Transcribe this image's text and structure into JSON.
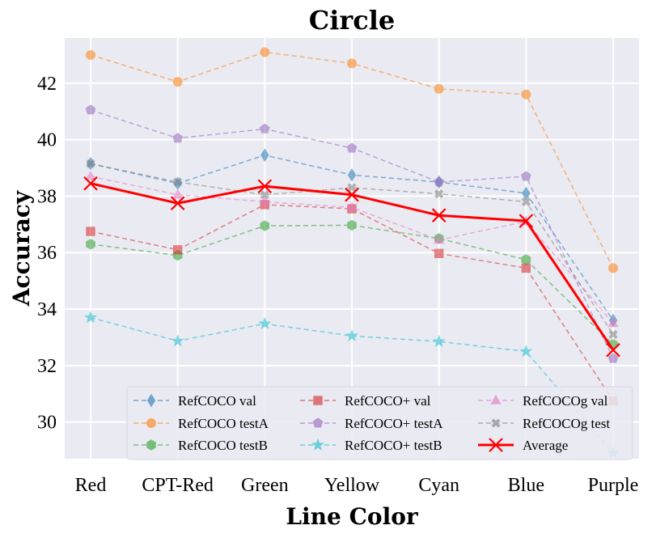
{
  "chart_data": {
    "type": "line",
    "title": "Circle",
    "xlabel": "Line Color",
    "ylabel": "Accuracy",
    "categories": [
      "Red",
      "CPT-Red",
      "Green",
      "Yellow",
      "Cyan",
      "Blue",
      "Purple"
    ],
    "ylim": [
      28.7,
      43.6
    ],
    "yticks": [
      30,
      32,
      34,
      36,
      38,
      40,
      42
    ],
    "grid": true,
    "legend_position": "lower-right",
    "series": [
      {
        "name": "RefCOCO val",
        "color": "#1f77b4",
        "marker": "diamond",
        "dashed": true,
        "values": [
          39.15,
          38.45,
          39.45,
          38.75,
          38.5,
          38.1,
          33.6
        ]
      },
      {
        "name": "RefCOCO testA",
        "color": "#ff7f0e",
        "marker": "circle",
        "dashed": true,
        "values": [
          43.0,
          42.05,
          43.1,
          42.7,
          41.8,
          41.6,
          35.45
        ]
      },
      {
        "name": "RefCOCO testB",
        "color": "#2ca02c",
        "marker": "hexagon",
        "dashed": true,
        "values": [
          36.3,
          35.9,
          36.95,
          36.97,
          36.5,
          35.75,
          32.75
        ]
      },
      {
        "name": "RefCOCO+ val",
        "color": "#d62728",
        "marker": "square",
        "dashed": true,
        "values": [
          36.75,
          36.1,
          37.7,
          37.55,
          35.97,
          35.45,
          30.75
        ]
      },
      {
        "name": "RefCOCO+ testA",
        "color": "#9467bd",
        "marker": "pentagon",
        "dashed": true,
        "values": [
          41.05,
          40.05,
          40.38,
          39.7,
          38.5,
          38.7,
          32.25
        ]
      },
      {
        "name": "RefCOCO+ testB",
        "color": "#17becf",
        "marker": "star",
        "dashed": true,
        "values": [
          33.7,
          32.87,
          33.48,
          33.05,
          32.85,
          32.5,
          28.9
        ]
      },
      {
        "name": "RefCOCOg val",
        "color": "#e377c2",
        "marker": "triangle",
        "dashed": true,
        "values": [
          38.7,
          38.05,
          37.8,
          37.6,
          36.45,
          37.1,
          33.5
        ]
      },
      {
        "name": "RefCOCOg test",
        "color": "#7f7f7f",
        "marker": "x-filled",
        "dashed": true,
        "values": [
          39.15,
          38.5,
          38.05,
          38.3,
          38.08,
          37.8,
          33.1
        ]
      },
      {
        "name": "Average",
        "color": "#ff0000",
        "marker": "x",
        "dashed": false,
        "values": [
          38.45,
          37.75,
          38.35,
          38.05,
          37.32,
          37.12,
          32.55
        ]
      }
    ]
  }
}
